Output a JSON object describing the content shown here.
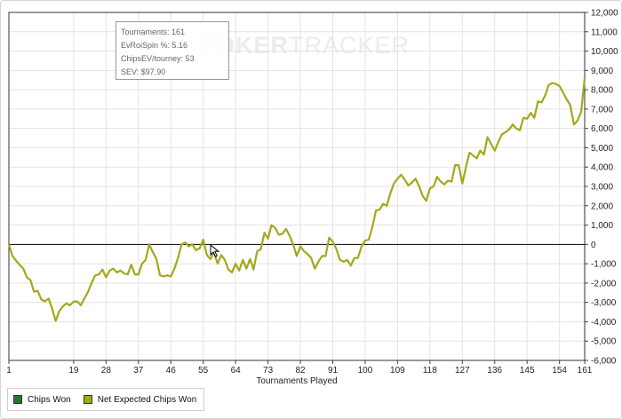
{
  "watermark": {
    "part1": "POKER",
    "part2": "TRACKER"
  },
  "tooltip": {
    "lines": [
      "Tournaments: 161",
      "EvRoiSpin %: 5.16",
      "ChipsEV/tourney: 53",
      "SEV: $97.90"
    ]
  },
  "legend": [
    {
      "label": "Chips Won",
      "color": "#1e7a2e"
    },
    {
      "label": "Net Expected Chips Won",
      "color": "#a3a81c"
    }
  ],
  "colors": {
    "line": "#a3a81c",
    "grid": "#e3e3e3",
    "zero": "#000000"
  },
  "chart_data": {
    "type": "line",
    "xlabel": "Tournaments Played",
    "ylabel": "",
    "xlim": [
      1,
      161
    ],
    "ylim": [
      -6000,
      12000
    ],
    "x_ticks": [
      1,
      19,
      28,
      37,
      46,
      55,
      64,
      73,
      82,
      91,
      100,
      109,
      118,
      127,
      136,
      145,
      154,
      161
    ],
    "x_tick_labels": [
      "1",
      "19",
      "28",
      "37",
      "46",
      "55",
      "64",
      "73",
      "82",
      "91",
      "100",
      "109",
      "118",
      "127",
      "136",
      "145",
      "154",
      "161"
    ],
    "y_ticks": [
      -6000,
      -5000,
      -4000,
      -3000,
      -2000,
      -1000,
      0,
      1000,
      2000,
      3000,
      4000,
      5000,
      6000,
      7000,
      8000,
      9000,
      10000,
      11000,
      12000
    ],
    "y_tick_labels": [
      "-6,000",
      "-5,000",
      "-4,000",
      "-3,000",
      "-2,000",
      "-1,000",
      "0",
      "1,000",
      "2,000",
      "3,000",
      "4,000",
      "5,000",
      "6,000",
      "7,000",
      "8,000",
      "9,000",
      "10,000",
      "11,000",
      "12,000"
    ],
    "grid": true,
    "legend_position": "bottom-left",
    "series": [
      {
        "name": "Net Expected Chips Won",
        "x": [
          1,
          2,
          3,
          4,
          5,
          6,
          7,
          8,
          9,
          10,
          11,
          12,
          13,
          14,
          15,
          16,
          17,
          18,
          19,
          20,
          21,
          22,
          23,
          24,
          25,
          26,
          27,
          28,
          29,
          30,
          31,
          32,
          33,
          34,
          35,
          36,
          37,
          38,
          39,
          40,
          41,
          42,
          43,
          44,
          45,
          46,
          47,
          48,
          49,
          50,
          51,
          52,
          53,
          54,
          55,
          56,
          57,
          58,
          59,
          60,
          61,
          62,
          63,
          64,
          65,
          66,
          67,
          68,
          69,
          70,
          71,
          72,
          73,
          74,
          75,
          76,
          77,
          78,
          79,
          80,
          81,
          82,
          83,
          84,
          85,
          86,
          87,
          88,
          89,
          90,
          91,
          92,
          93,
          94,
          95,
          96,
          97,
          98,
          99,
          100,
          101,
          102,
          103,
          104,
          105,
          106,
          107,
          108,
          109,
          110,
          111,
          112,
          113,
          114,
          115,
          116,
          117,
          118,
          119,
          120,
          121,
          122,
          123,
          124,
          125,
          126,
          127,
          128,
          129,
          130,
          131,
          132,
          133,
          134,
          135,
          136,
          137,
          138,
          139,
          140,
          141,
          142,
          143,
          144,
          145,
          146,
          147,
          148,
          149,
          150,
          151,
          152,
          153,
          154,
          155,
          156,
          157,
          158,
          159,
          160,
          161
        ],
        "y": [
          0,
          -600,
          -850,
          -1050,
          -1250,
          -1700,
          -1850,
          -2450,
          -2400,
          -2850,
          -2950,
          -2800,
          -3300,
          -3950,
          -3450,
          -3200,
          -3050,
          -3150,
          -2950,
          -2950,
          -3150,
          -2800,
          -2450,
          -2000,
          -1600,
          -1550,
          -1300,
          -1700,
          -1350,
          -1250,
          -1450,
          -1350,
          -1500,
          -1550,
          -1050,
          -1550,
          -1550,
          -1000,
          -800,
          0,
          -400,
          -750,
          -1600,
          -1650,
          -1600,
          -1650,
          -1250,
          -700,
          0,
          100,
          -100,
          0,
          -300,
          -200,
          250,
          -550,
          -750,
          -400,
          -1000,
          -550,
          -800,
          -1300,
          -1450,
          -1000,
          -1350,
          -800,
          -1250,
          -750,
          -1300,
          -350,
          -250,
          600,
          300,
          1000,
          850,
          500,
          550,
          800,
          450,
          0,
          -600,
          -100,
          -350,
          -500,
          -700,
          -1250,
          -900,
          -600,
          -600,
          350,
          150,
          -250,
          -800,
          -900,
          -800,
          -1100,
          -700,
          -700,
          -100,
          200,
          250,
          900,
          1750,
          1800,
          2100,
          2000,
          2650,
          3150,
          3400,
          3600,
          3350,
          3050,
          3200,
          3400,
          3000,
          2500,
          2250,
          2900,
          3000,
          3500,
          3250,
          3100,
          3300,
          3250,
          4100,
          4100,
          3150,
          4000,
          4750,
          4600,
          4450,
          4850,
          4650,
          5550,
          5200,
          4850,
          5300,
          5700,
          5800,
          5950,
          6200,
          6000,
          5900,
          6550,
          6500,
          6800,
          6550,
          7400,
          7350,
          7700,
          8250,
          8350,
          8300,
          8200,
          7850,
          7500,
          7200,
          6200,
          6400,
          6850,
          8600
        ]
      }
    ]
  }
}
